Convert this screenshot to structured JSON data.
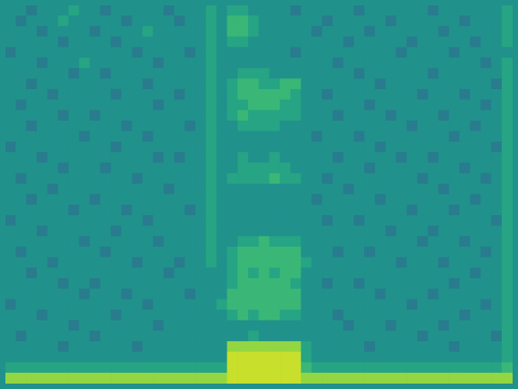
{
  "chart_data": {
    "type": "heatmap",
    "tick_labels": false,
    "grid": false,
    "zlim": [
      -2,
      10
    ],
    "cells": [
      [
        4,
        4,
        3,
        4,
        4,
        4,
        5,
        4,
        4,
        3,
        4,
        4,
        4,
        4,
        4,
        3,
        4,
        4,
        4,
        5,
        4,
        5,
        5,
        4,
        4,
        4,
        4,
        3,
        4,
        4,
        4,
        4,
        4,
        3,
        4,
        4,
        4,
        4,
        4,
        4,
        3,
        4,
        4,
        4,
        4,
        4,
        4,
        5
      ],
      [
        4,
        3,
        4,
        4,
        4,
        5,
        4,
        4,
        4,
        4,
        4,
        3,
        4,
        4,
        4,
        4,
        3,
        4,
        4,
        5,
        4,
        6,
        6,
        5,
        4,
        4,
        4,
        4,
        4,
        4,
        3,
        4,
        4,
        4,
        4,
        4,
        3,
        4,
        4,
        4,
        4,
        4,
        4,
        3,
        4,
        4,
        4,
        5
      ],
      [
        4,
        4,
        4,
        3,
        4,
        4,
        4,
        4,
        3,
        4,
        4,
        4,
        4,
        5,
        4,
        4,
        4,
        4,
        4,
        5,
        4,
        6,
        6,
        5,
        4,
        4,
        4,
        4,
        4,
        3,
        4,
        4,
        4,
        4,
        3,
        4,
        4,
        4,
        4,
        4,
        4,
        3,
        4,
        4,
        4,
        4,
        4,
        5
      ],
      [
        4,
        4,
        4,
        4,
        4,
        3,
        4,
        4,
        4,
        4,
        3,
        4,
        4,
        4,
        4,
        4,
        4,
        4,
        4,
        5,
        4,
        5,
        5,
        4,
        4,
        4,
        4,
        4,
        4,
        4,
        4,
        4,
        3,
        4,
        4,
        4,
        4,
        4,
        3,
        4,
        4,
        4,
        4,
        4,
        3,
        4,
        4,
        5
      ],
      [
        3,
        4,
        4,
        4,
        4,
        4,
        4,
        4,
        4,
        4,
        4,
        4,
        3,
        4,
        4,
        4,
        4,
        3,
        4,
        5,
        4,
        4,
        4,
        4,
        4,
        4,
        4,
        3,
        4,
        4,
        4,
        4,
        4,
        4,
        4,
        4,
        4,
        3,
        4,
        4,
        4,
        4,
        3,
        4,
        4,
        4,
        4,
        4
      ],
      [
        4,
        4,
        4,
        3,
        4,
        4,
        4,
        5,
        4,
        4,
        4,
        4,
        4,
        4,
        3,
        4,
        4,
        4,
        4,
        5,
        4,
        4,
        4,
        4,
        4,
        4,
        4,
        4,
        4,
        4,
        4,
        3,
        4,
        4,
        4,
        4,
        4,
        4,
        4,
        4,
        4,
        4,
        4,
        4,
        4,
        3,
        4,
        5
      ],
      [
        4,
        4,
        4,
        4,
        4,
        4,
        3,
        4,
        4,
        3,
        4,
        4,
        4,
        4,
        4,
        4,
        4,
        4,
        4,
        5,
        4,
        4,
        5,
        5,
        5,
        4,
        4,
        4,
        4,
        4,
        4,
        4,
        4,
        3,
        4,
        4,
        4,
        4,
        4,
        4,
        3,
        4,
        4,
        4,
        4,
        4,
        4,
        5
      ],
      [
        4,
        4,
        3,
        4,
        4,
        4,
        4,
        4,
        4,
        4,
        4,
        4,
        4,
        3,
        4,
        4,
        4,
        4,
        4,
        5,
        4,
        5,
        6,
        6,
        5,
        5,
        6,
        6,
        4,
        4,
        4,
        4,
        4,
        4,
        4,
        3,
        4,
        4,
        4,
        4,
        4,
        4,
        4,
        4,
        4,
        4,
        3,
        5
      ],
      [
        4,
        4,
        4,
        4,
        3,
        4,
        4,
        4,
        4,
        4,
        3,
        4,
        4,
        4,
        4,
        4,
        3,
        4,
        4,
        5,
        4,
        5,
        6,
        6,
        6,
        6,
        6,
        5,
        4,
        4,
        3,
        4,
        4,
        4,
        4,
        4,
        4,
        4,
        4,
        3,
        4,
        4,
        4,
        3,
        4,
        4,
        4,
        5
      ],
      [
        4,
        3,
        4,
        4,
        4,
        4,
        4,
        4,
        4,
        4,
        4,
        4,
        4,
        4,
        3,
        4,
        4,
        4,
        4,
        5,
        4,
        5,
        5,
        6,
        6,
        6,
        5,
        5,
        4,
        4,
        4,
        4,
        4,
        4,
        3,
        4,
        4,
        4,
        4,
        4,
        4,
        4,
        4,
        4,
        4,
        3,
        4,
        5
      ],
      [
        4,
        4,
        4,
        4,
        4,
        3,
        4,
        4,
        3,
        4,
        4,
        4,
        4,
        4,
        4,
        4,
        4,
        4,
        4,
        5,
        4,
        5,
        6,
        5,
        5,
        5,
        5,
        5,
        4,
        4,
        4,
        3,
        4,
        4,
        4,
        4,
        3,
        4,
        4,
        4,
        4,
        3,
        4,
        4,
        4,
        4,
        4,
        5
      ],
      [
        4,
        4,
        3,
        4,
        4,
        4,
        4,
        4,
        4,
        4,
        4,
        3,
        4,
        4,
        4,
        4,
        4,
        3,
        4,
        5,
        4,
        4,
        5,
        5,
        5,
        5,
        4,
        4,
        4,
        4,
        4,
        4,
        4,
        4,
        4,
        4,
        4,
        4,
        3,
        4,
        4,
        4,
        4,
        4,
        3,
        4,
        4,
        5
      ],
      [
        4,
        4,
        4,
        4,
        4,
        4,
        4,
        3,
        4,
        4,
        4,
        4,
        4,
        3,
        4,
        4,
        4,
        4,
        4,
        5,
        4,
        4,
        4,
        4,
        4,
        4,
        4,
        4,
        4,
        3,
        4,
        4,
        4,
        3,
        4,
        4,
        4,
        4,
        4,
        4,
        4,
        4,
        3,
        4,
        4,
        4,
        4,
        5
      ],
      [
        3,
        4,
        4,
        4,
        4,
        4,
        4,
        4,
        4,
        4,
        3,
        4,
        4,
        4,
        4,
        4,
        4,
        4,
        4,
        5,
        4,
        4,
        4,
        4,
        4,
        4,
        4,
        4,
        4,
        4,
        4,
        4,
        4,
        4,
        4,
        3,
        4,
        4,
        4,
        4,
        4,
        4,
        4,
        4,
        4,
        4,
        3,
        5
      ],
      [
        4,
        4,
        4,
        3,
        4,
        4,
        4,
        4,
        4,
        4,
        4,
        4,
        4,
        4,
        3,
        4,
        3,
        4,
        4,
        5,
        4,
        4,
        5,
        4,
        4,
        5,
        4,
        4,
        4,
        4,
        4,
        3,
        4,
        4,
        4,
        4,
        4,
        3,
        4,
        4,
        3,
        4,
        4,
        4,
        4,
        4,
        4,
        5
      ],
      [
        4,
        4,
        4,
        4,
        4,
        3,
        4,
        4,
        4,
        3,
        4,
        4,
        4,
        4,
        4,
        4,
        4,
        4,
        4,
        5,
        4,
        4,
        5,
        5,
        5,
        5,
        5,
        4,
        4,
        4,
        4,
        4,
        4,
        4,
        3,
        4,
        4,
        4,
        4,
        4,
        4,
        4,
        4,
        3,
        4,
        4,
        4,
        5
      ],
      [
        4,
        3,
        4,
        4,
        4,
        4,
        4,
        4,
        4,
        4,
        4,
        4,
        3,
        4,
        4,
        4,
        4,
        4,
        4,
        5,
        4,
        5,
        5,
        5,
        5,
        6,
        5,
        5,
        4,
        4,
        3,
        4,
        4,
        4,
        4,
        4,
        4,
        4,
        4,
        3,
        4,
        4,
        4,
        4,
        4,
        3,
        4,
        5
      ],
      [
        4,
        4,
        4,
        4,
        3,
        4,
        4,
        4,
        4,
        4,
        4,
        4,
        4,
        4,
        4,
        3,
        4,
        4,
        4,
        5,
        4,
        4,
        4,
        4,
        4,
        4,
        4,
        4,
        4,
        4,
        4,
        4,
        3,
        4,
        4,
        4,
        4,
        4,
        4,
        4,
        4,
        3,
        4,
        4,
        4,
        4,
        4,
        5
      ],
      [
        4,
        4,
        3,
        4,
        4,
        4,
        4,
        4,
        3,
        4,
        4,
        4,
        4,
        4,
        4,
        4,
        4,
        4,
        4,
        5,
        4,
        4,
        4,
        4,
        4,
        4,
        4,
        4,
        4,
        3,
        4,
        4,
        4,
        4,
        4,
        3,
        4,
        4,
        4,
        4,
        4,
        4,
        4,
        4,
        3,
        4,
        4,
        5
      ],
      [
        4,
        4,
        4,
        4,
        4,
        4,
        3,
        4,
        4,
        4,
        4,
        3,
        4,
        4,
        4,
        4,
        4,
        3,
        4,
        5,
        4,
        4,
        4,
        4,
        4,
        4,
        4,
        4,
        4,
        4,
        4,
        4,
        4,
        4,
        4,
        4,
        4,
        4,
        3,
        4,
        4,
        4,
        3,
        4,
        4,
        4,
        4,
        5
      ],
      [
        3,
        4,
        4,
        4,
        4,
        4,
        4,
        4,
        4,
        4,
        4,
        4,
        4,
        3,
        4,
        4,
        4,
        4,
        4,
        5,
        4,
        4,
        4,
        4,
        4,
        4,
        4,
        4,
        4,
        4,
        3,
        4,
        4,
        3,
        4,
        4,
        4,
        4,
        4,
        4,
        4,
        4,
        4,
        4,
        4,
        4,
        3,
        5
      ],
      [
        4,
        4,
        4,
        3,
        4,
        4,
        4,
        4,
        4,
        4,
        3,
        4,
        4,
        4,
        4,
        4,
        4,
        4,
        4,
        5,
        4,
        4,
        4,
        4,
        4,
        4,
        4,
        4,
        4,
        4,
        4,
        4,
        4,
        4,
        4,
        4,
        3,
        4,
        4,
        4,
        3,
        4,
        4,
        4,
        4,
        4,
        4,
        5
      ],
      [
        4,
        4,
        4,
        4,
        4,
        4,
        4,
        3,
        4,
        4,
        4,
        4,
        4,
        4,
        3,
        4,
        4,
        4,
        4,
        5,
        4,
        4,
        5,
        5,
        6,
        5,
        5,
        5,
        4,
        4,
        4,
        4,
        4,
        4,
        4,
        4,
        4,
        4,
        4,
        3,
        4,
        4,
        4,
        3,
        4,
        4,
        4,
        5
      ],
      [
        4,
        3,
        4,
        4,
        4,
        4,
        4,
        4,
        4,
        3,
        4,
        4,
        4,
        4,
        4,
        4,
        4,
        4,
        4,
        5,
        4,
        5,
        6,
        6,
        6,
        6,
        6,
        6,
        4,
        4,
        4,
        3,
        4,
        4,
        3,
        4,
        4,
        4,
        4,
        4,
        4,
        4,
        4,
        4,
        4,
        3,
        4,
        5
      ],
      [
        4,
        4,
        4,
        4,
        3,
        4,
        4,
        4,
        4,
        4,
        4,
        4,
        3,
        4,
        4,
        4,
        3,
        4,
        4,
        5,
        4,
        5,
        6,
        6,
        6,
        6,
        6,
        6,
        5,
        4,
        4,
        4,
        4,
        4,
        4,
        4,
        4,
        3,
        4,
        4,
        4,
        3,
        4,
        4,
        4,
        4,
        4,
        5
      ],
      [
        4,
        4,
        3,
        4,
        4,
        4,
        4,
        4,
        4,
        4,
        4,
        4,
        4,
        4,
        4,
        3,
        4,
        4,
        4,
        4,
        4,
        5,
        6,
        5,
        6,
        5,
        6,
        6,
        4,
        4,
        4,
        4,
        4,
        4,
        4,
        4,
        4,
        4,
        4,
        4,
        4,
        4,
        4,
        4,
        3,
        4,
        4,
        5
      ],
      [
        4,
        4,
        4,
        4,
        4,
        3,
        4,
        4,
        3,
        4,
        4,
        4,
        4,
        4,
        4,
        4,
        4,
        4,
        4,
        4,
        4,
        5,
        6,
        6,
        6,
        6,
        6,
        5,
        4,
        4,
        3,
        4,
        4,
        3,
        4,
        4,
        4,
        4,
        4,
        4,
        4,
        4,
        3,
        4,
        4,
        4,
        4,
        5
      ],
      [
        4,
        4,
        4,
        4,
        4,
        4,
        4,
        3,
        4,
        4,
        4,
        3,
        4,
        4,
        4,
        4,
        4,
        3,
        4,
        4,
        4,
        6,
        6,
        6,
        6,
        6,
        6,
        6,
        4,
        4,
        4,
        4,
        4,
        4,
        4,
        3,
        4,
        4,
        4,
        4,
        3,
        4,
        4,
        4,
        4,
        4,
        4,
        5
      ],
      [
        3,
        4,
        4,
        4,
        4,
        4,
        4,
        4,
        4,
        4,
        4,
        4,
        4,
        3,
        4,
        4,
        4,
        4,
        4,
        4,
        5,
        6,
        6,
        6,
        6,
        6,
        6,
        6,
        4,
        4,
        4,
        4,
        4,
        4,
        4,
        4,
        4,
        4,
        3,
        4,
        4,
        4,
        4,
        4,
        4,
        3,
        4,
        5
      ],
      [
        4,
        4,
        4,
        3,
        4,
        4,
        4,
        4,
        4,
        4,
        3,
        4,
        4,
        4,
        4,
        4,
        4,
        4,
        4,
        4,
        4,
        5,
        6,
        5,
        6,
        6,
        5,
        5,
        4,
        4,
        4,
        3,
        4,
        4,
        4,
        4,
        4,
        4,
        4,
        4,
        4,
        4,
        4,
        3,
        4,
        4,
        4,
        5
      ],
      [
        4,
        4,
        4,
        4,
        4,
        4,
        3,
        4,
        4,
        4,
        4,
        4,
        4,
        4,
        3,
        4,
        4,
        4,
        4,
        4,
        4,
        4,
        4,
        4,
        4,
        4,
        4,
        4,
        4,
        4,
        4,
        4,
        3,
        4,
        4,
        4,
        3,
        4,
        4,
        4,
        4,
        3,
        4,
        4,
        4,
        4,
        4,
        5
      ],
      [
        4,
        3,
        4,
        4,
        4,
        4,
        4,
        4,
        3,
        4,
        4,
        4,
        4,
        4,
        4,
        4,
        4,
        4,
        4,
        4,
        4,
        4,
        4,
        5,
        4,
        4,
        4,
        4,
        4,
        4,
        4,
        4,
        4,
        4,
        4,
        4,
        4,
        4,
        4,
        3,
        4,
        4,
        4,
        4,
        4,
        4,
        3,
        5
      ],
      [
        4,
        4,
        4,
        4,
        4,
        3,
        4,
        4,
        4,
        4,
        4,
        4,
        3,
        4,
        4,
        4,
        4,
        4,
        4,
        4,
        4,
        8,
        8,
        8,
        8,
        8,
        8,
        8,
        5,
        4,
        4,
        4,
        4,
        4,
        3,
        4,
        4,
        4,
        4,
        4,
        4,
        4,
        3,
        4,
        4,
        4,
        4,
        5
      ],
      [
        4,
        4,
        4,
        4,
        4,
        4,
        4,
        4,
        4,
        4,
        4,
        4,
        4,
        4,
        4,
        4,
        4,
        4,
        4,
        4,
        4,
        9,
        9,
        9,
        9,
        9,
        9,
        9,
        5,
        4,
        4,
        4,
        4,
        4,
        4,
        4,
        4,
        4,
        4,
        4,
        4,
        4,
        4,
        4,
        4,
        4,
        4,
        5
      ],
      [
        5,
        5,
        5,
        5,
        5,
        5,
        5,
        5,
        5,
        5,
        5,
        5,
        5,
        5,
        5,
        5,
        5,
        5,
        5,
        5,
        5,
        9,
        9,
        9,
        9,
        9,
        9,
        9,
        6,
        5,
        5,
        5,
        5,
        5,
        5,
        5,
        5,
        5,
        5,
        5,
        5,
        5,
        5,
        5,
        5,
        5,
        5,
        6
      ],
      [
        8,
        8,
        8,
        8,
        8,
        8,
        8,
        8,
        8,
        8,
        8,
        8,
        8,
        8,
        8,
        8,
        8,
        8,
        8,
        8,
        8,
        9,
        9,
        9,
        9,
        9,
        9,
        9,
        8,
        8,
        8,
        8,
        8,
        8,
        8,
        8,
        8,
        8,
        8,
        8,
        8,
        8,
        8,
        8,
        8,
        8,
        8,
        8
      ]
    ]
  }
}
